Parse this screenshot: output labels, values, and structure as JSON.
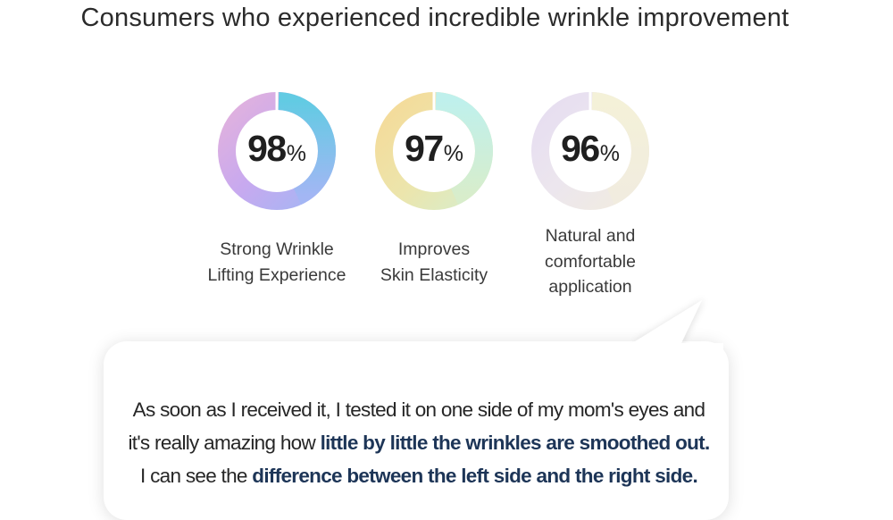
{
  "headline": "Consumers who experienced incredible wrinkle improvement",
  "stats": [
    {
      "value": 98,
      "number": "98",
      "unit": "%",
      "caption_lines": [
        "Strong Wrinkle",
        "Lifting Experience"
      ],
      "ring_colors": [
        "#62cbe3",
        "#a3b6f4",
        "#c8a9ef",
        "#e3b2dc"
      ]
    },
    {
      "value": 97,
      "number": "97",
      "unit": "%",
      "caption_lines": [
        "Improves",
        "Skin Elasticity"
      ],
      "ring_colors": [
        "#bff0ec",
        "#d8edcb",
        "#ece5ac",
        "#f5da98"
      ]
    },
    {
      "value": 96,
      "number": "96",
      "unit": "%",
      "caption_lines": [
        "Natural and",
        "comfortable",
        "application"
      ],
      "ring_colors": [
        "#f4f1d8",
        "#f1ecdf",
        "#ece6ee",
        "#e6ddf1"
      ]
    }
  ],
  "review": {
    "line1": "As soon as I received it, I tested it on one side of my mom's eyes and",
    "line2_plain": "it's really amazing how ",
    "line2_bold": "little by little the wrinkles are smoothed out.",
    "line3_plain": "I can see the ",
    "line3_bold": "difference between the left side and the right side."
  }
}
